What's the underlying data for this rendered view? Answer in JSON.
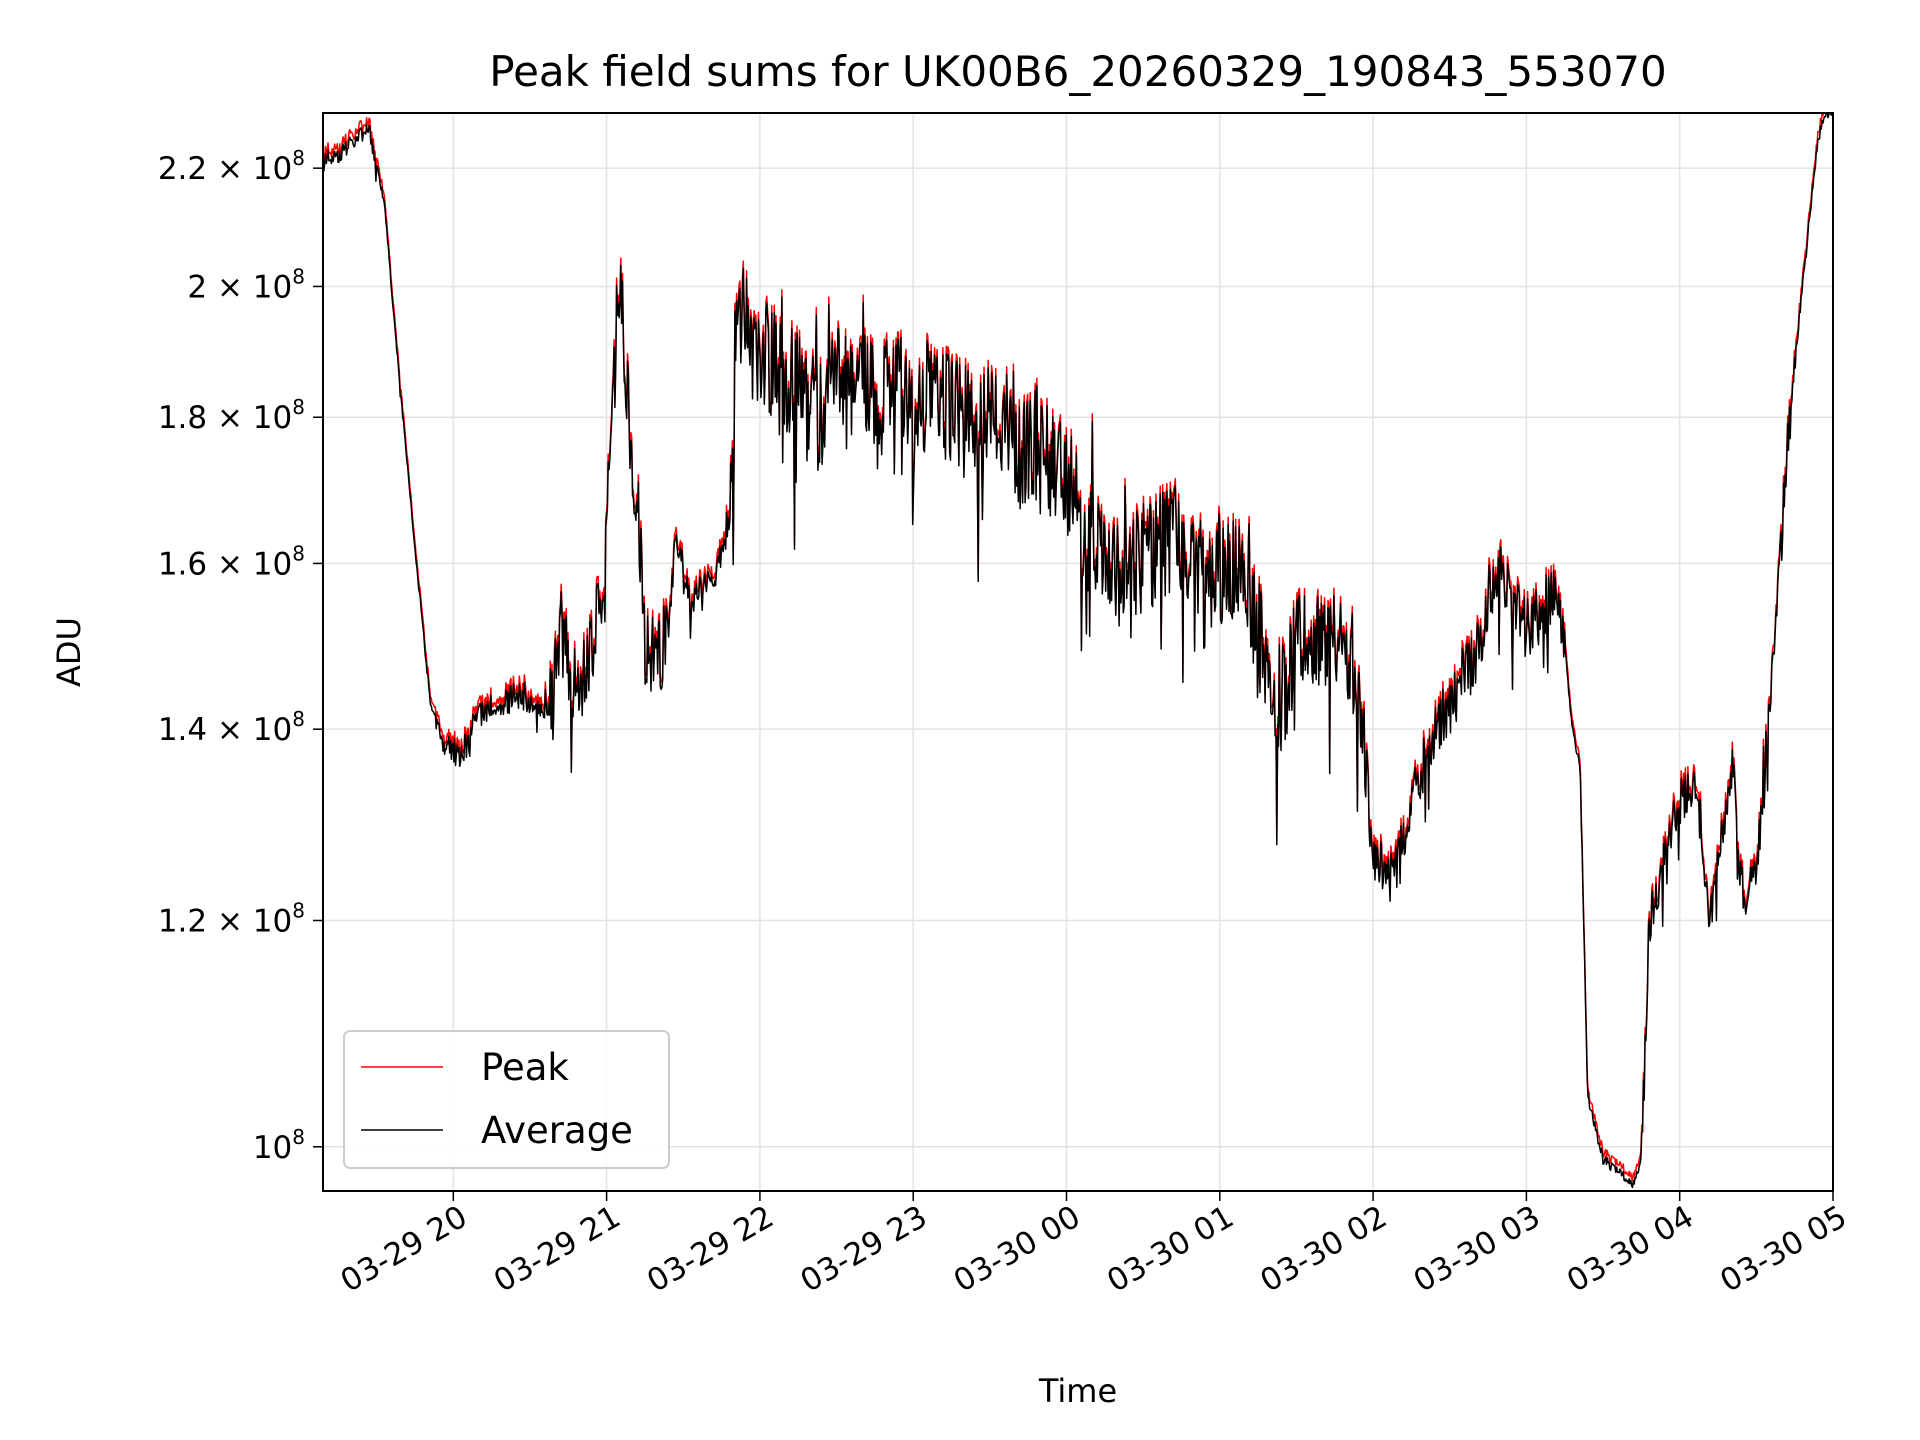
{
  "chart_data": {
    "type": "line",
    "title": "Peak field sums for UK00B6_20260329_190843_553070",
    "xlabel": "Time",
    "ylabel": "ADU",
    "yscale": "log",
    "ylim": [
      96500000,
      230000000
    ],
    "xlim_hours_since_2026_03_29_00_00": [
      19.15,
      29.0
    ],
    "grid": true,
    "legend_position": "lower-left",
    "x_ticks": [
      {
        "label": "03-29 20",
        "hour": 20
      },
      {
        "label": "03-29 21",
        "hour": 21
      },
      {
        "label": "03-29 22",
        "hour": 22
      },
      {
        "label": "03-29 23",
        "hour": 23
      },
      {
        "label": "03-30 00",
        "hour": 24
      },
      {
        "label": "03-30 01",
        "hour": 25
      },
      {
        "label": "03-30 02",
        "hour": 26
      },
      {
        "label": "03-30 03",
        "hour": 27
      },
      {
        "label": "03-30 04",
        "hour": 28
      },
      {
        "label": "03-30 05",
        "hour": 29
      }
    ],
    "y_ticks": [
      {
        "mant": "10",
        "exp": "8",
        "value": 100000000
      },
      {
        "mant": "1.2 × 10",
        "exp": "8",
        "value": 120000000
      },
      {
        "mant": "1.4 × 10",
        "exp": "8",
        "value": 140000000
      },
      {
        "mant": "1.6 × 10",
        "exp": "8",
        "value": 160000000
      },
      {
        "mant": "1.8 × 10",
        "exp": "8",
        "value": 180000000
      },
      {
        "mant": "2 × 10",
        "exp": "8",
        "value": 200000000
      },
      {
        "mant": "2.2 × 10",
        "exp": "8",
        "value": 220000000
      }
    ],
    "series": [
      {
        "name": "Peak",
        "color": "#ff0000",
        "offset_factor": 1.006,
        "x_hours": [
          19.15,
          19.25,
          19.35,
          19.45,
          19.55,
          19.65,
          19.75,
          19.85,
          19.95,
          20.05,
          20.15,
          20.25,
          20.35,
          20.45,
          20.55,
          20.65,
          20.7,
          20.75,
          20.8,
          20.85,
          20.9,
          21.0,
          21.05,
          21.1,
          21.15,
          21.2,
          21.25,
          21.3,
          21.4,
          21.45,
          21.5,
          21.55,
          21.6,
          21.7,
          21.8,
          21.85,
          21.9,
          22.0,
          22.1,
          22.2,
          22.3,
          22.4,
          22.5,
          22.6,
          22.7,
          22.8,
          22.9,
          23.0,
          23.1,
          23.2,
          23.3,
          23.4,
          23.5,
          23.6,
          23.7,
          23.8,
          23.9,
          24.0,
          24.1,
          24.2,
          24.3,
          24.4,
          24.5,
          24.6,
          24.7,
          24.8,
          24.9,
          25.0,
          25.1,
          25.2,
          25.3,
          25.4,
          25.5,
          25.6,
          25.7,
          25.8,
          25.9,
          25.95,
          26.0,
          26.1,
          26.2,
          26.3,
          26.4,
          26.5,
          26.6,
          26.7,
          26.75,
          26.8,
          26.9,
          27.0,
          27.1,
          27.2,
          27.25,
          27.3,
          27.35,
          27.4,
          27.5,
          27.6,
          27.7,
          27.75,
          27.8,
          27.9,
          28.0,
          28.05,
          28.1,
          28.15,
          28.2,
          28.25,
          28.3,
          28.35,
          28.4,
          28.45,
          28.5,
          28.55,
          28.6,
          28.7,
          28.8,
          28.9,
          28.95,
          29.0
        ],
        "values": [
          222000000,
          222000000,
          225000000,
          227000000,
          214000000,
          185000000,
          162000000,
          143000000,
          138000000,
          137000000,
          141000000,
          143000000,
          143000000,
          144000000,
          142000000,
          143000000,
          152000000,
          148000000,
          143000000,
          147000000,
          150000000,
          162000000,
          192000000,
          198000000,
          178000000,
          168000000,
          150000000,
          148000000,
          151000000,
          163000000,
          160000000,
          154000000,
          157000000,
          158000000,
          165000000,
          193000000,
          196000000,
          190000000,
          188000000,
          186000000,
          182000000,
          180000000,
          188000000,
          183000000,
          185000000,
          182000000,
          187000000,
          178000000,
          184000000,
          182000000,
          181000000,
          179000000,
          181000000,
          180000000,
          175000000,
          177000000,
          173000000,
          172000000,
          165000000,
          162000000,
          158000000,
          161000000,
          160000000,
          162000000,
          164000000,
          160000000,
          156000000,
          158000000,
          160000000,
          156000000,
          147000000,
          143000000,
          149000000,
          150000000,
          148000000,
          149000000,
          147000000,
          136000000,
          126000000,
          124000000,
          127000000,
          135000000,
          139000000,
          143000000,
          146000000,
          150000000,
          156000000,
          160000000,
          155000000,
          152000000,
          154000000,
          157000000,
          150000000,
          140000000,
          136000000,
          104000000,
          99000000,
          98000000,
          97000000,
          99000000,
          119000000,
          127000000,
          132000000,
          133000000,
          134000000,
          127000000,
          120000000,
          126000000,
          131000000,
          136000000,
          124000000,
          122000000,
          126000000,
          133000000,
          146000000,
          175000000,
          200000000,
          225000000,
          230000000,
          230000000
        ]
      },
      {
        "name": "Average",
        "color": "#000000",
        "offset_factor": 1.0,
        "x_hours": [
          19.15,
          19.25,
          19.35,
          19.45,
          19.55,
          19.65,
          19.75,
          19.85,
          19.95,
          20.05,
          20.15,
          20.25,
          20.35,
          20.45,
          20.55,
          20.65,
          20.7,
          20.75,
          20.8,
          20.85,
          20.9,
          21.0,
          21.05,
          21.1,
          21.15,
          21.2,
          21.25,
          21.3,
          21.4,
          21.45,
          21.5,
          21.55,
          21.6,
          21.7,
          21.8,
          21.85,
          21.9,
          22.0,
          22.1,
          22.2,
          22.3,
          22.4,
          22.5,
          22.6,
          22.7,
          22.8,
          22.9,
          23.0,
          23.1,
          23.2,
          23.3,
          23.4,
          23.5,
          23.6,
          23.7,
          23.8,
          23.9,
          24.0,
          24.1,
          24.2,
          24.3,
          24.4,
          24.5,
          24.6,
          24.7,
          24.8,
          24.9,
          25.0,
          25.1,
          25.2,
          25.3,
          25.4,
          25.5,
          25.6,
          25.7,
          25.8,
          25.9,
          25.95,
          26.0,
          26.1,
          26.2,
          26.3,
          26.4,
          26.5,
          26.6,
          26.7,
          26.75,
          26.8,
          26.9,
          27.0,
          27.1,
          27.2,
          27.25,
          27.3,
          27.35,
          27.4,
          27.5,
          27.6,
          27.7,
          27.75,
          27.8,
          27.9,
          28.0,
          28.05,
          28.1,
          28.15,
          28.2,
          28.25,
          28.3,
          28.35,
          28.4,
          28.45,
          28.5,
          28.55,
          28.6,
          28.7,
          28.8,
          28.9,
          28.95,
          29.0
        ],
        "values": [
          222000000,
          222000000,
          225000000,
          227000000,
          214000000,
          185000000,
          162000000,
          143000000,
          138000000,
          137000000,
          141000000,
          143000000,
          143000000,
          144000000,
          142000000,
          143000000,
          152000000,
          148000000,
          143000000,
          147000000,
          150000000,
          162000000,
          192000000,
          198000000,
          178000000,
          168000000,
          150000000,
          148000000,
          151000000,
          163000000,
          160000000,
          154000000,
          157000000,
          158000000,
          165000000,
          193000000,
          196000000,
          190000000,
          188000000,
          186000000,
          182000000,
          180000000,
          188000000,
          183000000,
          185000000,
          182000000,
          187000000,
          178000000,
          184000000,
          182000000,
          181000000,
          179000000,
          181000000,
          180000000,
          175000000,
          177000000,
          173000000,
          172000000,
          165000000,
          162000000,
          158000000,
          161000000,
          160000000,
          162000000,
          164000000,
          160000000,
          156000000,
          158000000,
          160000000,
          156000000,
          147000000,
          143000000,
          149000000,
          150000000,
          148000000,
          149000000,
          147000000,
          136000000,
          126000000,
          124000000,
          127000000,
          135000000,
          139000000,
          143000000,
          146000000,
          150000000,
          156000000,
          160000000,
          155000000,
          152000000,
          154000000,
          157000000,
          150000000,
          140000000,
          136000000,
          104000000,
          99000000,
          98000000,
          97000000,
          99000000,
          119000000,
          127000000,
          132000000,
          133000000,
          134000000,
          127000000,
          120000000,
          126000000,
          131000000,
          136000000,
          124000000,
          122000000,
          126000000,
          133000000,
          146000000,
          175000000,
          200000000,
          225000000,
          230000000,
          230000000
        ]
      }
    ]
  },
  "legend": {
    "items": [
      {
        "label": "Peak",
        "color": "#ff0000"
      },
      {
        "label": "Average",
        "color": "#000000"
      }
    ]
  }
}
